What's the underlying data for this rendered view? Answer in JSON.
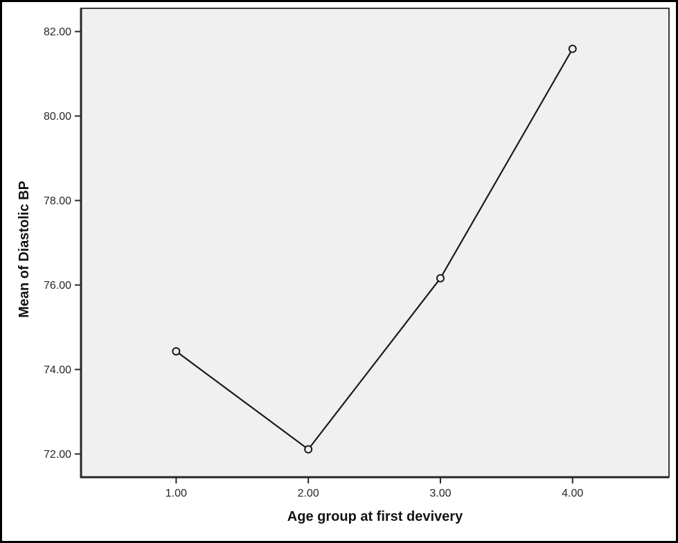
{
  "chart_data": {
    "type": "line",
    "title": "",
    "xlabel": "Age group at first devivery",
    "ylabel": "Mean of Diastolic BP",
    "x": [
      1.0,
      2.0,
      3.0,
      4.0
    ],
    "y": [
      74.43,
      72.11,
      76.16,
      81.59
    ],
    "x_tick_labels": [
      "1.00",
      "2.00",
      "3.00",
      "4.00"
    ],
    "y_ticks": [
      72,
      74,
      76,
      78,
      80,
      82
    ],
    "y_tick_labels": [
      "72.00",
      "74.00",
      "76.00",
      "78.00",
      "80.00",
      "82.00"
    ],
    "xlim": [
      0.28,
      4.73
    ],
    "ylim": [
      71.45,
      82.55
    ],
    "grid": false,
    "legend": false,
    "marker": "open-circle",
    "colors": {
      "line": "#1a1a1a",
      "marker_stroke": "#1a1a1a",
      "plot_background": "#f0f0f0",
      "panel_border": "#3a3a3a",
      "axis_line": "#262626",
      "tick_label": "#262626",
      "outer_border": "#000000",
      "page_background": "#ffffff"
    }
  }
}
